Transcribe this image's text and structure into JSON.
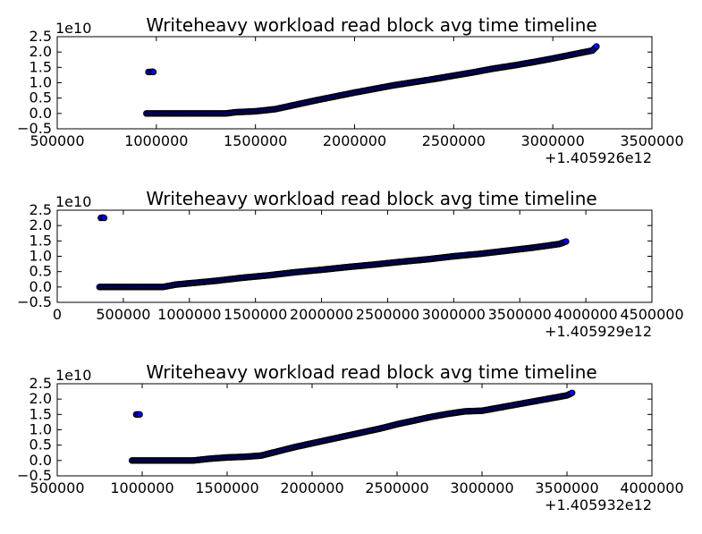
{
  "chart_data": [
    {
      "type": "scatter",
      "title": "Writeheavy workload read block avg time timeline",
      "y_scale_label": "1e10",
      "x_offset_label": "+1.405926e12",
      "xlim": [
        500000,
        3500000
      ],
      "ylim": [
        -0.5,
        2.5
      ],
      "xticks": [
        500000,
        1000000,
        1500000,
        2000000,
        2500000,
        3000000,
        3500000
      ],
      "xtick_labels": [
        "500000",
        "1000000",
        "1500000",
        "2000000",
        "2500000",
        "3000000",
        "3500000"
      ],
      "yticks": [
        -0.5,
        0.0,
        0.5,
        1.0,
        1.5,
        2.0,
        2.5
      ],
      "ytick_labels": [
        "−0.5",
        "0.0",
        "0.5",
        "1.0",
        "1.5",
        "2.0",
        "2.5"
      ],
      "outliers": [
        [
          960000,
          1.35
        ],
        [
          970000,
          1.35
        ],
        [
          980000,
          1.36
        ],
        [
          985000,
          1.35
        ]
      ],
      "series": [
        {
          "x": [
            950000,
            1000000,
            1100000,
            1200000,
            1300000,
            1350000,
            1400000,
            1500000,
            1600000,
            1700000,
            1800000,
            1900000,
            2000000,
            2100000,
            2200000,
            2300000,
            2400000,
            2500000,
            2600000,
            2700000,
            2800000,
            2900000,
            3000000,
            3100000,
            3200000,
            3220000
          ],
          "y": [
            0.0,
            0.0,
            0.0,
            0.0,
            0.0,
            0.0,
            0.04,
            0.07,
            0.14,
            0.28,
            0.42,
            0.55,
            0.68,
            0.8,
            0.92,
            1.02,
            1.12,
            1.23,
            1.34,
            1.46,
            1.56,
            1.67,
            1.79,
            1.92,
            2.05,
            2.18
          ]
        }
      ]
    },
    {
      "type": "scatter",
      "title": "Writeheavy workload read block avg time timeline",
      "y_scale_label": "1e10",
      "x_offset_label": "+1.405929e12",
      "xlim": [
        0,
        4500000
      ],
      "ylim": [
        -0.5,
        2.5
      ],
      "xticks": [
        0,
        500000,
        1000000,
        1500000,
        2000000,
        2500000,
        3000000,
        3500000,
        4000000,
        4500000
      ],
      "xtick_labels": [
        "0",
        "500000",
        "1000000",
        "1500000",
        "2000000",
        "2500000",
        "3000000",
        "3500000",
        "4000000",
        "4500000"
      ],
      "yticks": [
        -0.5,
        0.0,
        0.5,
        1.0,
        1.5,
        2.0,
        2.5
      ],
      "ytick_labels": [
        "−0.5",
        "0.0",
        "0.5",
        "1.0",
        "1.5",
        "2.0",
        "2.5"
      ],
      "outliers": [
        [
          330000,
          2.25
        ],
        [
          345000,
          2.26
        ],
        [
          355000,
          2.25
        ]
      ],
      "series": [
        {
          "x": [
            320000,
            400000,
            500000,
            600000,
            700000,
            800000,
            900000,
            1000000,
            1200000,
            1400000,
            1600000,
            1800000,
            2000000,
            2200000,
            2400000,
            2600000,
            2800000,
            3000000,
            3200000,
            3400000,
            3600000,
            3800000,
            3850000
          ],
          "y": [
            0.0,
            0.0,
            0.0,
            0.0,
            0.0,
            0.0,
            0.08,
            0.12,
            0.2,
            0.3,
            0.38,
            0.48,
            0.56,
            0.65,
            0.73,
            0.82,
            0.9,
            1.0,
            1.08,
            1.18,
            1.28,
            1.4,
            1.48
          ]
        }
      ]
    },
    {
      "type": "scatter",
      "title": "Writeheavy workload read block avg time timeline",
      "y_scale_label": "1e10",
      "x_offset_label": "+1.405932e12",
      "xlim": [
        500000,
        4000000
      ],
      "ylim": [
        -0.5,
        2.5
      ],
      "xticks": [
        500000,
        1000000,
        1500000,
        2000000,
        2500000,
        3000000,
        3500000,
        4000000
      ],
      "xtick_labels": [
        "500000",
        "1000000",
        "1500000",
        "2000000",
        "2500000",
        "3000000",
        "3500000",
        "4000000"
      ],
      "yticks": [
        -0.5,
        0.0,
        0.5,
        1.0,
        1.5,
        2.0,
        2.5
      ],
      "ytick_labels": [
        "−0.5",
        "0.0",
        "0.5",
        "1.0",
        "1.5",
        "2.0",
        "2.5"
      ],
      "outliers": [
        [
          965000,
          1.5
        ],
        [
          975000,
          1.5
        ],
        [
          985000,
          1.5
        ]
      ],
      "series": [
        {
          "x": [
            940000,
            1000000,
            1100000,
            1200000,
            1300000,
            1400000,
            1500000,
            1600000,
            1700000,
            1800000,
            1900000,
            2000000,
            2100000,
            2200000,
            2300000,
            2400000,
            2500000,
            2600000,
            2700000,
            2800000,
            2900000,
            3000000,
            3100000,
            3200000,
            3300000,
            3400000,
            3500000,
            3530000
          ],
          "y": [
            0.0,
            0.0,
            0.0,
            0.0,
            0.0,
            0.06,
            0.1,
            0.12,
            0.16,
            0.3,
            0.44,
            0.56,
            0.68,
            0.8,
            0.92,
            1.04,
            1.18,
            1.3,
            1.42,
            1.52,
            1.6,
            1.62,
            1.72,
            1.82,
            1.92,
            2.02,
            2.12,
            2.2
          ]
        }
      ]
    }
  ]
}
